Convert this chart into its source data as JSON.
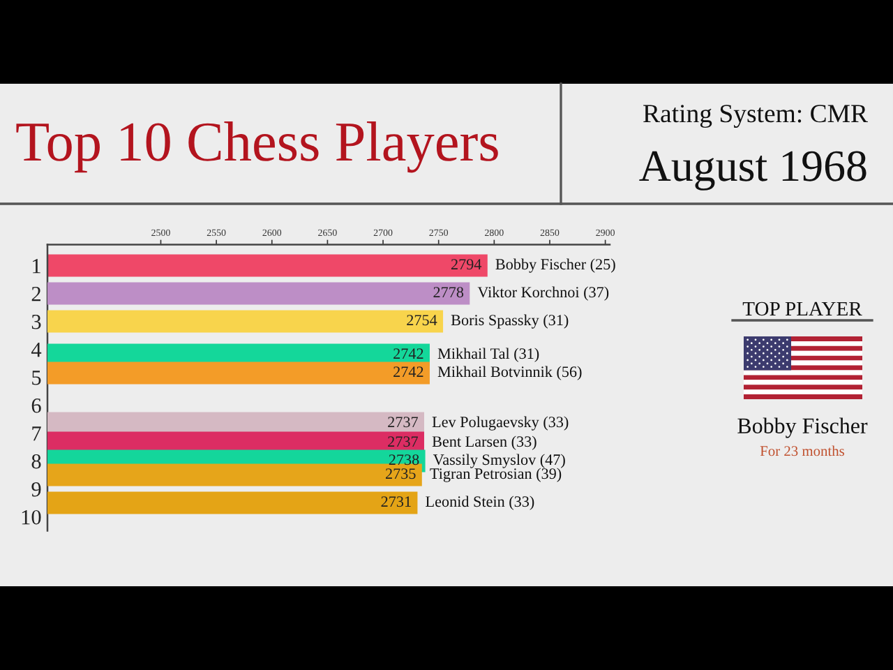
{
  "chart_data": {
    "type": "bar",
    "orientation": "horizontal",
    "title": "Top 10 Chess Players",
    "subtitle": "Rating System: CMR",
    "annotations": [
      "August 1968",
      "TOP PLAYER",
      "Bobby Fischer",
      "For 23 months"
    ],
    "series": [
      {
        "name": "Bobby Fischer (25)",
        "color": "#ef4868",
        "x": [
          1
        ],
        "values": [
          2794
        ]
      },
      {
        "name": "Viktor Korchnoi (37)",
        "color": "#bd8ec6",
        "x": [
          2
        ],
        "values": [
          2778
        ]
      },
      {
        "name": "Boris Spassky (31)",
        "color": "#f8d44c",
        "x": [
          3
        ],
        "values": [
          2754
        ]
      },
      {
        "name": "Mikhail Tal (31)",
        "color": "#14d79a",
        "x": [
          4.2
        ],
        "values": [
          2742
        ]
      },
      {
        "name": "Mikhail Botvinnik (56)",
        "color": "#f39c28",
        "x": [
          4.85
        ],
        "values": [
          2742
        ]
      },
      {
        "name": "Lev Polugaevsky (33)",
        "color": "#d5b9c3",
        "x": [
          6.65
        ],
        "values": [
          2737
        ]
      },
      {
        "name": "Bent Larsen (33)",
        "color": "#dc2d63",
        "x": [
          7.35
        ],
        "values": [
          2737
        ]
      },
      {
        "name": "Vassily Smyslov (47)",
        "color": "#14d69b",
        "x": [
          8.0
        ],
        "values": [
          2738
        ]
      },
      {
        "name": "Tigran Petrosian (39)",
        "color": "#e6a51a",
        "x": [
          8.5
        ],
        "values": [
          2735
        ]
      },
      {
        "name": "Leonid Stein (33)",
        "color": "#e4a416",
        "x": [
          9.5
        ],
        "values": [
          2731
        ]
      }
    ],
    "xlim": [
      2398,
      2904
    ],
    "xticks": [
      2500,
      2550,
      2600,
      2650,
      2700,
      2750,
      2800,
      2850,
      2900
    ],
    "ylim": [
      10.5,
      0.25
    ],
    "yticks": [
      1,
      2,
      3,
      4,
      5,
      6,
      7,
      8,
      9,
      10
    ],
    "data_labels": true
  }
}
